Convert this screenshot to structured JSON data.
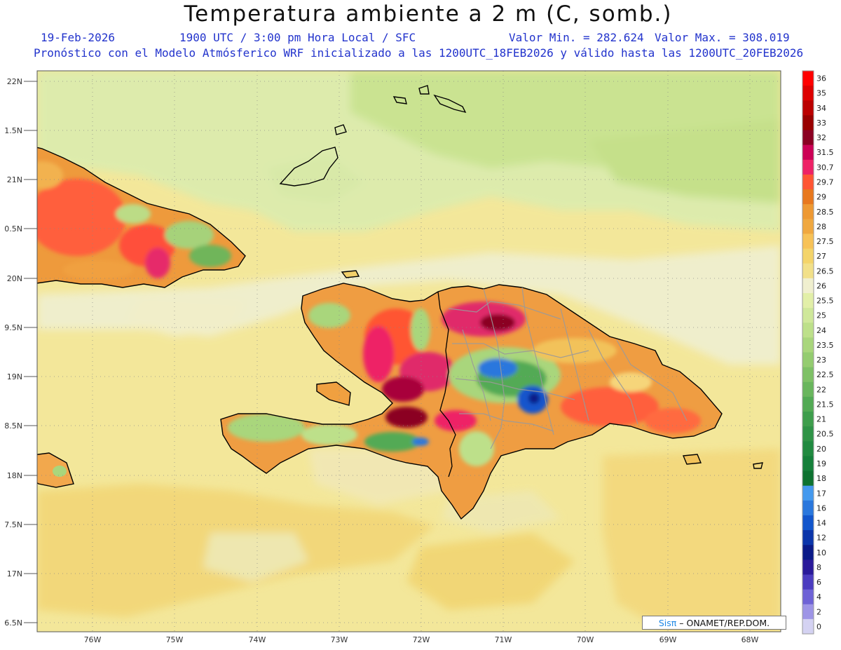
{
  "header": {
    "title": "Temperatura ambiente a 2 m (C, somb.)",
    "date": "19-Feb-2026",
    "time": "1900 UTC / 3:00 pm Hora Local / SFC",
    "val_min": "Valor Min. = 282.624",
    "val_max": "Valor Max. = 308.019",
    "model_line": "Pronóstico con el Modelo Atmósferico WRF inicializado a las 1200UTC_18FEB2026 y válido hasta las  1200UTC_20FEB2026"
  },
  "map": {
    "lat_labels": [
      "22N",
      "1.5N",
      "21N",
      "0.5N",
      "20N",
      "9.5N",
      "19N",
      "8.5N",
      "18N",
      "7.5N",
      "17N",
      "6.5N"
    ],
    "lon_labels": [
      "76W",
      "75W",
      "74W",
      "73W",
      "72W",
      "71W",
      "70W",
      "69W",
      "68W"
    ],
    "regions": [
      "Cuba",
      "Great Inagua",
      "Turks and Caicos",
      "Jamaica",
      "Hispaniola",
      "Haiti",
      "Dominican Republic",
      "Gonâve",
      "Tortuga",
      "Saona",
      "Mona",
      "Navassa"
    ]
  },
  "colorbar": {
    "levels": [
      "36",
      "35",
      "34",
      "33",
      "32",
      "31.5",
      "30.7",
      "29.7",
      "29",
      "28.5",
      "28",
      "27.5",
      "27",
      "26.5",
      "26",
      "25.5",
      "25",
      "24",
      "23.5",
      "23",
      "22.5",
      "22",
      "21.5",
      "21",
      "20.5",
      "20",
      "19",
      "18",
      "17",
      "16",
      "14",
      "12",
      "10",
      "8",
      "6",
      "4",
      "2",
      "0"
    ],
    "colors": [
      "#ff0000",
      "#dd0000",
      "#bb0000",
      "#990000",
      "#8b0022",
      "#cc0055",
      "#ee2266",
      "#ff5533",
      "#e8781e",
      "#ee9933",
      "#f0a840",
      "#f7c257",
      "#f4d46a",
      "#f2e089",
      "#f0efcf",
      "#e2efa8",
      "#cfe89a",
      "#bde08a",
      "#a9d67c",
      "#94cc70",
      "#7ec166",
      "#69b65d",
      "#52aa54",
      "#3e9e4c",
      "#2f9346",
      "#218a40",
      "#15803a",
      "#0e7230",
      "#4499ee",
      "#2a77dd",
      "#1255cc",
      "#0b35aa",
      "#0a1a88",
      "#2a1a9a",
      "#4b3cc0",
      "#6e62d6",
      "#9d94e6",
      "#d4d2f2"
    ]
  },
  "credit": {
    "sis": "Sisπ",
    "org": " – ONAMET/REP.DOM."
  }
}
